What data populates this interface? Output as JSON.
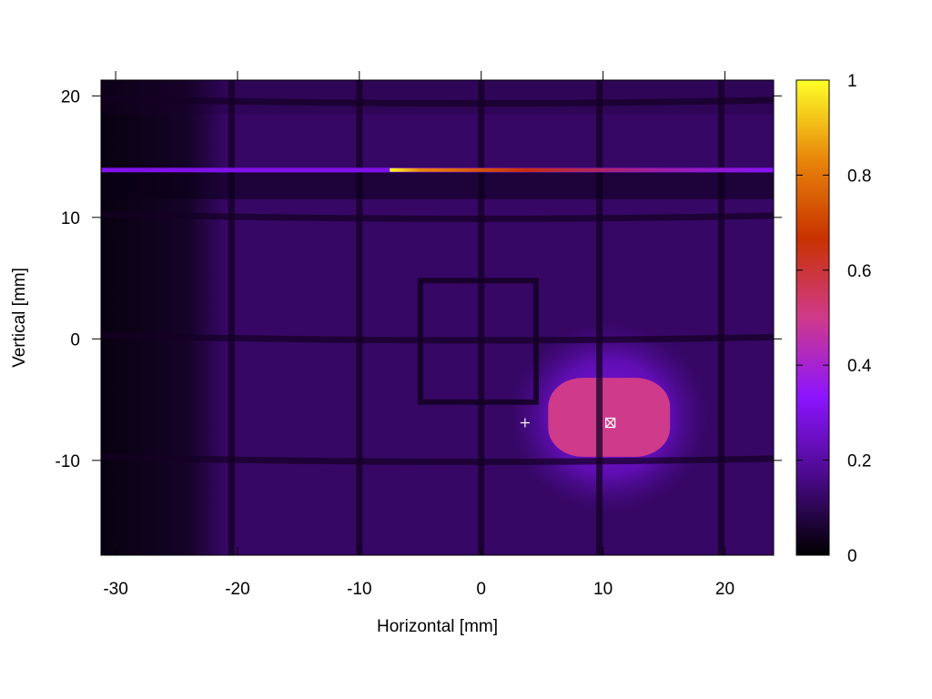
{
  "chart_data": {
    "type": "heatmap",
    "title": "",
    "xlabel": "Horizontal [mm]",
    "ylabel": "Vertical [mm]",
    "xlim": [
      -31.2,
      24
    ],
    "ylim": [
      -17.8,
      21.3
    ],
    "xticks": [
      -30,
      -20,
      -10,
      0,
      10,
      20
    ],
    "yticks": [
      -10,
      0,
      10,
      20
    ],
    "colorbar": {
      "range": [
        0,
        1
      ],
      "ticks": [
        0,
        0.2,
        0.4,
        0.6,
        0.8,
        1
      ],
      "palette": [
        "#000000",
        "#4b0a8c",
        "#8c14ff",
        "#d03a8a",
        "#c83200",
        "#e8860a",
        "#ffff28"
      ]
    },
    "background_level": 0.12,
    "grid_lines_mm": {
      "vertical": [
        -20.5,
        -10,
        0,
        9.7,
        19.7
      ],
      "horizontal_approx": [
        19.5,
        10,
        0,
        -10
      ]
    },
    "bright_stripe": {
      "y": 13.9,
      "x_range": [
        -31.2,
        24
      ],
      "level": 0.3,
      "peak_x": -7.5,
      "peak_level": 1.0
    },
    "beam_spot": {
      "x_range": [
        5.5,
        15.5
      ],
      "y_range": [
        -9.7,
        -3.2
      ],
      "center": [
        10.5,
        -6.8
      ],
      "level": 0.5
    },
    "square_outline": {
      "x_range": [
        -5,
        4.5
      ],
      "y_range": [
        -5.2,
        4.8
      ]
    },
    "markers": [
      {
        "shape": "plus",
        "x": 3.6,
        "y": -6.9
      },
      {
        "shape": "boxed-x",
        "x": 10.6,
        "y": -6.9
      }
    ]
  }
}
